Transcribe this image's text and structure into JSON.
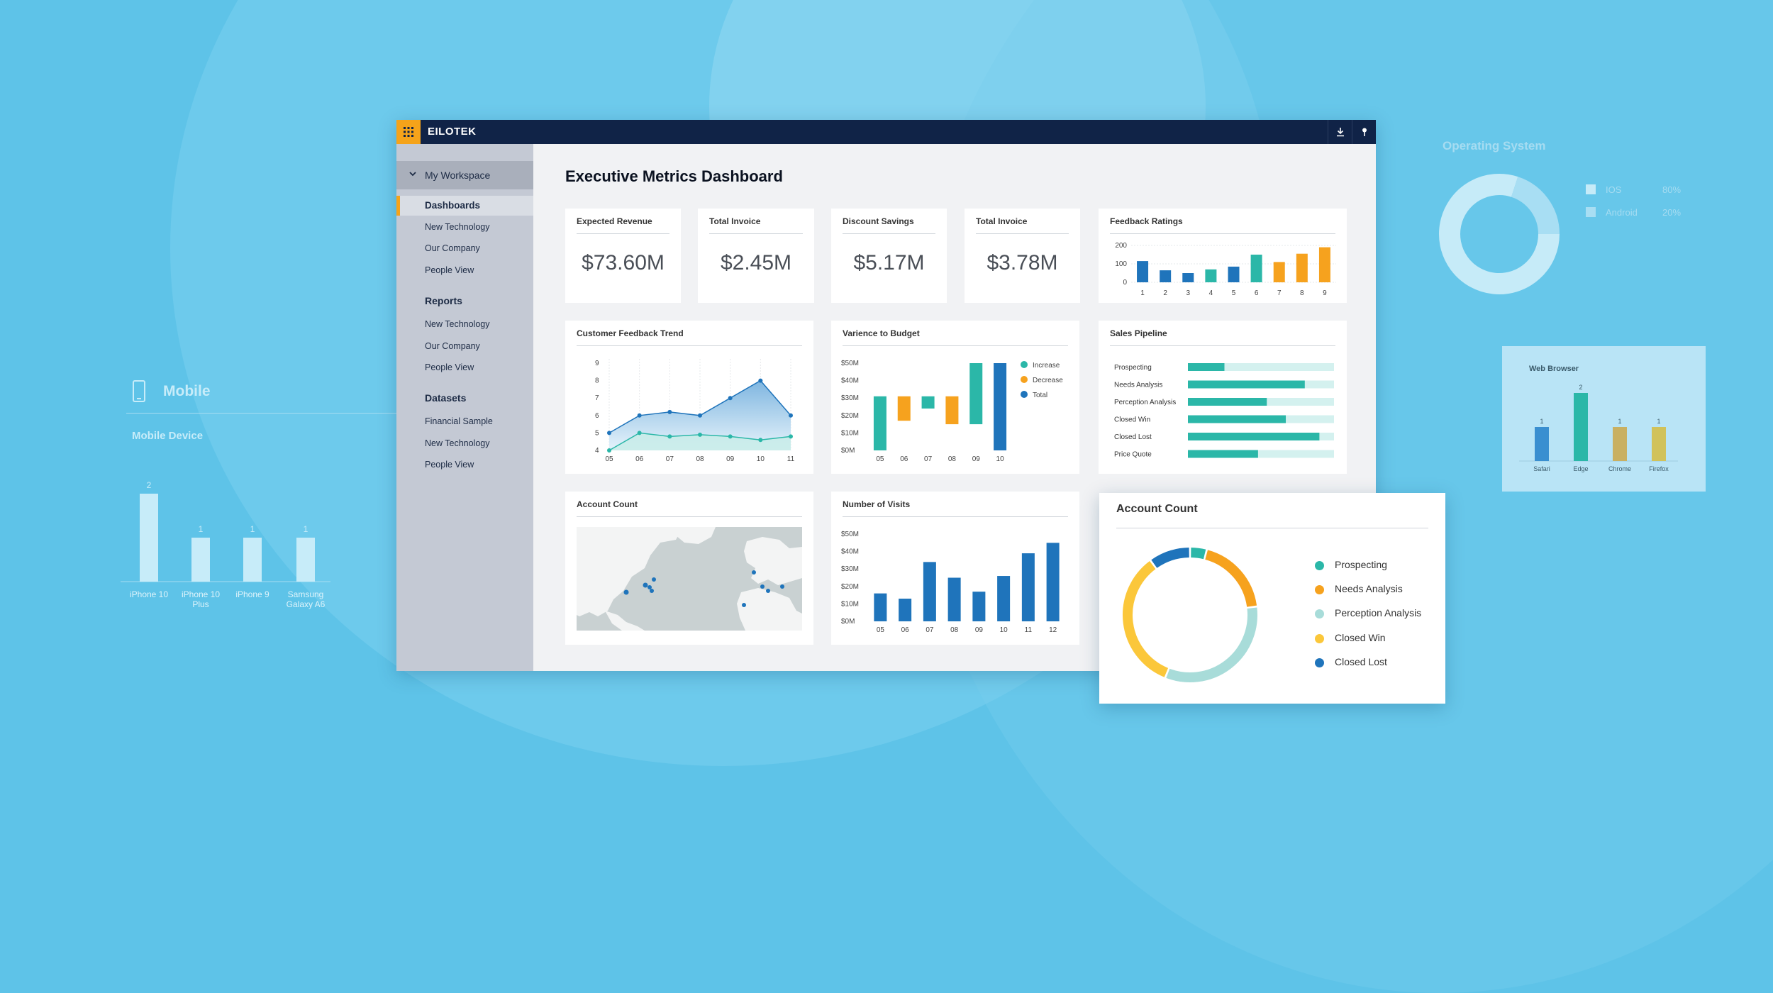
{
  "app": {
    "brand": "EILOTEK"
  },
  "sidebar": {
    "workspace": "My Workspace",
    "sections": [
      {
        "title": "",
        "items": [
          "Dashboards",
          "New Technology",
          "Our Company",
          "People View"
        ]
      },
      {
        "title": "Reports",
        "items": [
          "New Technology",
          "Our Company",
          "People View"
        ]
      },
      {
        "title": "Datasets",
        "items": [
          "Financial Sample",
          "New Technology",
          "People View"
        ]
      }
    ],
    "active_item": "Dashboards"
  },
  "page": {
    "title": "Executive Metrics Dashboard"
  },
  "kpis": [
    {
      "title": "Expected Revenue",
      "value": "$73.60M"
    },
    {
      "title": "Total Invoice",
      "value": "$2.45M"
    },
    {
      "title": "Discount Savings",
      "value": "$5.17M"
    },
    {
      "title": "Total Invoice",
      "value": "$3.78M"
    }
  ],
  "colors": {
    "teal": "#2bb7a8",
    "orange": "#f6a21e",
    "blue": "#1f74bb",
    "navy": "#102347",
    "yellow": "#fbc73a",
    "light_teal": "#a8dcd9",
    "pale": "#d4f1ef"
  },
  "chart_data": [
    {
      "id": "feedback_ratings",
      "type": "bar",
      "title": "Feedback Ratings",
      "categories": [
        "1",
        "2",
        "3",
        "4",
        "5",
        "6",
        "7",
        "8",
        "9"
      ],
      "values": [
        115,
        65,
        50,
        70,
        85,
        150,
        110,
        155,
        190
      ],
      "yticks": [
        0,
        100,
        200
      ],
      "ylim": [
        0,
        200
      ],
      "grid": true
    },
    {
      "id": "customer_feedback_trend",
      "type": "area",
      "title": "Customer Feedback Trend",
      "categories": [
        "05",
        "06",
        "07",
        "08",
        "09",
        "10",
        "11"
      ],
      "x": [
        0,
        0.5,
        1,
        1.5,
        2,
        2.5,
        3,
        3.5,
        4,
        4.5,
        5,
        5.5,
        6
      ],
      "series": [
        {
          "values": [
            5,
            6,
            6.2,
            6,
            7,
            8,
            6
          ]
        },
        {
          "values": [
            4,
            5,
            4.8,
            4.9,
            4.8,
            4.6,
            4.8
          ]
        }
      ],
      "yticks": [
        4,
        5,
        6,
        7,
        8,
        9
      ],
      "ylim": [
        4,
        9
      ]
    },
    {
      "id": "variance_to_budget",
      "type": "bar",
      "title": "Varience to Budget",
      "categories": [
        "05",
        "06",
        "07",
        "08",
        "09",
        "10"
      ],
      "bars": [
        {
          "low": 0,
          "high": 31,
          "kind": "Increase"
        },
        {
          "low": 17,
          "high": 31,
          "kind": "Decrease"
        },
        {
          "low": 24,
          "high": 31,
          "kind": "Increase"
        },
        {
          "low": 15,
          "high": 31,
          "kind": "Decrease"
        },
        {
          "low": 15,
          "high": 50,
          "kind": "Increase"
        },
        {
          "low": 0,
          "high": 50,
          "kind": "Total"
        }
      ],
      "yticks": [
        "$0M",
        "$10M",
        "$20M",
        "$30M",
        "$40M",
        "$50M"
      ],
      "ylim": [
        0,
        50
      ],
      "legend": [
        "Increase",
        "Decrease",
        "Total"
      ]
    },
    {
      "id": "sales_pipeline",
      "type": "bar",
      "title": "Sales Pipeline",
      "orientation": "horizontal",
      "categories": [
        "Prospecting",
        "Needs Analysis",
        "Perception Analysis",
        "Closed Win",
        "Closed Lost",
        "Price Quote"
      ],
      "values": [
        0.25,
        0.8,
        0.54,
        0.67,
        0.9,
        0.48
      ]
    },
    {
      "id": "number_of_visits",
      "type": "bar",
      "title": "Number of Visits",
      "categories": [
        "05",
        "06",
        "07",
        "08",
        "09",
        "10",
        "11",
        "12"
      ],
      "values": [
        16,
        13,
        34,
        25,
        17,
        26,
        39,
        45
      ],
      "yticks": [
        "$0M",
        "$10M",
        "$20M",
        "$30M",
        "$40M",
        "$50M"
      ],
      "ylim": [
        0,
        50
      ]
    },
    {
      "id": "account_count",
      "type": "pie",
      "title": "Account Count",
      "labels": [
        "Prospecting",
        "Needs Analysis",
        "Perception Analysis",
        "Closed Win",
        "Closed Lost"
      ],
      "values": [
        4,
        19,
        33,
        34,
        10
      ]
    },
    {
      "id": "mobile_device",
      "type": "bar",
      "title": "Mobile Device",
      "categories": [
        "iPhone 10",
        "iPhone 10 Plus",
        "iPhone 9",
        "Samsung Galaxy A6"
      ],
      "values": [
        2,
        1,
        1,
        1
      ]
    },
    {
      "id": "operating_system",
      "type": "pie",
      "title": "Operating System",
      "labels": [
        "IOS",
        "Android"
      ],
      "value_labels": [
        "80%",
        "20%"
      ],
      "values": [
        80,
        20
      ]
    },
    {
      "id": "web_browser",
      "type": "bar",
      "title": "Web Browser",
      "categories": [
        "Safari",
        "Edge",
        "Chrome",
        "Firefox"
      ],
      "values": [
        1,
        2,
        1,
        1
      ]
    }
  ],
  "account_map": {
    "title": "Account Count"
  },
  "background": {
    "mobile_title": "Mobile"
  }
}
